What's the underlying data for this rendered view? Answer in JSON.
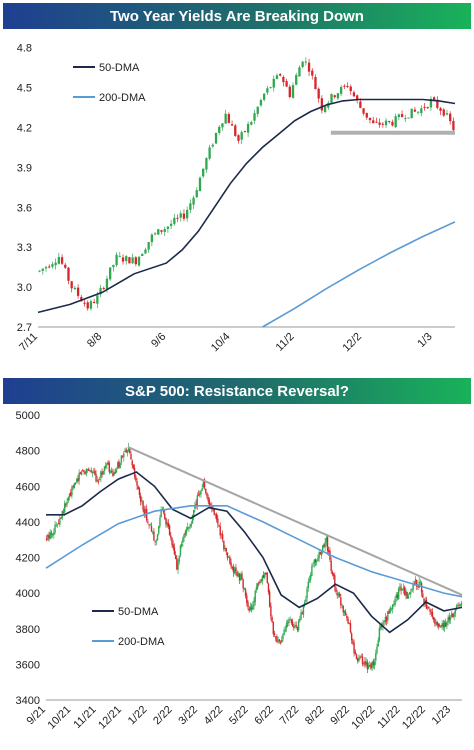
{
  "chart_data": [
    {
      "type": "candlestick",
      "title": "Two Year Yields Are Breaking Down",
      "xlabel": "",
      "ylabel": "",
      "ylim": [
        2.7,
        4.85
      ],
      "y_ticks": [
        "2.7",
        "3.0",
        "3.3",
        "3.6",
        "3.9",
        "4.2",
        "4.5",
        "4.8"
      ],
      "x_ticks": [
        "7/11",
        "8/8",
        "9/6",
        "10/4",
        "11/2",
        "12/2",
        "1/3"
      ],
      "x_tick_pos": [
        0,
        20,
        40,
        60,
        80,
        101,
        123
      ],
      "n_days": 130,
      "grid": false,
      "legend": "top-left",
      "support_level": 4.16,
      "colors": {
        "up": "#2fa84f",
        "down": "#d7262b",
        "ma50": "#1b2a4a",
        "ma200": "#5b9bd5",
        "support": "#b0b0b0"
      },
      "series": [
        {
          "name": "50-DMA",
          "x": [
            0,
            10,
            20,
            30,
            40,
            45,
            50,
            55,
            60,
            65,
            70,
            75,
            80,
            85,
            90,
            95,
            100,
            110,
            120,
            125,
            130
          ],
          "values": [
            2.81,
            2.87,
            2.96,
            3.1,
            3.18,
            3.28,
            3.42,
            3.6,
            3.78,
            3.93,
            4.05,
            4.15,
            4.25,
            4.32,
            4.37,
            4.4,
            4.41,
            4.41,
            4.41,
            4.4,
            4.38
          ]
        },
        {
          "name": "200-DMA",
          "x": [
            70,
            80,
            90,
            100,
            110,
            120,
            130
          ],
          "values": [
            2.7,
            2.84,
            2.99,
            3.13,
            3.26,
            3.38,
            3.49
          ]
        }
      ],
      "path": [
        [
          0,
          3.12
        ],
        [
          6,
          3.23
        ],
        [
          10,
          3.0
        ],
        [
          15,
          2.85
        ],
        [
          18,
          2.92
        ],
        [
          24,
          3.22
        ],
        [
          30,
          3.2
        ],
        [
          35,
          3.38
        ],
        [
          40,
          3.46
        ],
        [
          45,
          3.54
        ],
        [
          48,
          3.68
        ],
        [
          52,
          3.96
        ],
        [
          56,
          4.22
        ],
        [
          58,
          4.3
        ],
        [
          62,
          4.1
        ],
        [
          66,
          4.25
        ],
        [
          70,
          4.45
        ],
        [
          75,
          4.6
        ],
        [
          78,
          4.45
        ],
        [
          82,
          4.72
        ],
        [
          84,
          4.65
        ],
        [
          88,
          4.35
        ],
        [
          92,
          4.45
        ],
        [
          96,
          4.52
        ],
        [
          100,
          4.35
        ],
        [
          104,
          4.22
        ],
        [
          110,
          4.24
        ],
        [
          114,
          4.3
        ],
        [
          118,
          4.32
        ],
        [
          122,
          4.4
        ],
        [
          126,
          4.32
        ],
        [
          130,
          4.15
        ]
      ]
    },
    {
      "type": "candlestick",
      "title": "S&P 500: Resistance Reversal?",
      "xlabel": "",
      "ylabel": "",
      "ylim": [
        3400,
        5000
      ],
      "y_ticks": [
        "3400",
        "3600",
        "3800",
        "4000",
        "4200",
        "4400",
        "4600",
        "4800",
        "5000"
      ],
      "x_ticks": [
        "9/21",
        "10/21",
        "11/21",
        "12/21",
        "1/22",
        "2/22",
        "3/22",
        "4/22",
        "5/22",
        "6/22",
        "7/22",
        "8/22",
        "9/22",
        "10/22",
        "11/22",
        "12/22",
        "1/23"
      ],
      "x_tick_pos": [
        0,
        21,
        42,
        63,
        84,
        105,
        126,
        147,
        168,
        189,
        210,
        231,
        252,
        273,
        294,
        315,
        336
      ],
      "n_days": 345,
      "grid": false,
      "legend": "bottom-left",
      "resistance_line": {
        "x": [
          68,
          345
        ],
        "values": [
          4820,
          3990
        ]
      },
      "colors": {
        "up": "#2fa84f",
        "down": "#d7262b",
        "ma50": "#1b2a4a",
        "ma200": "#5b9bd5",
        "resistance": "#a6a6a6"
      },
      "series": [
        {
          "name": "50-DMA",
          "x": [
            0,
            15,
            30,
            45,
            60,
            75,
            90,
            105,
            120,
            135,
            150,
            165,
            180,
            195,
            210,
            225,
            240,
            255,
            270,
            285,
            300,
            315,
            330,
            345
          ],
          "values": [
            4440,
            4440,
            4490,
            4570,
            4640,
            4680,
            4600,
            4470,
            4420,
            4480,
            4460,
            4340,
            4200,
            3990,
            3920,
            3970,
            4050,
            4000,
            3870,
            3780,
            3850,
            3950,
            3900,
            3920
          ]
        },
        {
          "name": "200-DMA",
          "x": [
            0,
            30,
            60,
            90,
            120,
            150,
            180,
            210,
            240,
            270,
            300,
            330,
            345
          ],
          "values": [
            4140,
            4270,
            4390,
            4460,
            4490,
            4490,
            4400,
            4300,
            4200,
            4120,
            4060,
            4000,
            3980
          ]
        }
      ],
      "path": [
        [
          0,
          4300
        ],
        [
          8,
          4380
        ],
        [
          20,
          4560
        ],
        [
          28,
          4680
        ],
        [
          35,
          4700
        ],
        [
          42,
          4640
        ],
        [
          50,
          4720
        ],
        [
          55,
          4650
        ],
        [
          62,
          4760
        ],
        [
          68,
          4800
        ],
        [
          72,
          4680
        ],
        [
          78,
          4520
        ],
        [
          84,
          4410
        ],
        [
          90,
          4280
        ],
        [
          96,
          4480
        ],
        [
          102,
          4330
        ],
        [
          108,
          4150
        ],
        [
          112,
          4280
        ],
        [
          120,
          4400
        ],
        [
          126,
          4560
        ],
        [
          130,
          4620
        ],
        [
          135,
          4500
        ],
        [
          142,
          4400
        ],
        [
          148,
          4240
        ],
        [
          155,
          4120
        ],
        [
          162,
          4080
        ],
        [
          168,
          3880
        ],
        [
          175,
          4040
        ],
        [
          182,
          4100
        ],
        [
          188,
          3770
        ],
        [
          194,
          3720
        ],
        [
          200,
          3850
        ],
        [
          208,
          3800
        ],
        [
          214,
          3950
        ],
        [
          220,
          4150
        ],
        [
          226,
          4210
        ],
        [
          232,
          4290
        ],
        [
          236,
          4140
        ],
        [
          240,
          4020
        ],
        [
          245,
          3930
        ],
        [
          250,
          3850
        ],
        [
          256,
          3640
        ],
        [
          262,
          3620
        ],
        [
          268,
          3580
        ],
        [
          272,
          3600
        ],
        [
          276,
          3790
        ],
        [
          282,
          3860
        ],
        [
          288,
          3960
        ],
        [
          294,
          4030
        ],
        [
          300,
          3980
        ],
        [
          305,
          4070
        ],
        [
          310,
          4040
        ],
        [
          314,
          3940
        ],
        [
          320,
          3850
        ],
        [
          326,
          3820
        ],
        [
          332,
          3830
        ],
        [
          338,
          3900
        ],
        [
          345,
          3970
        ]
      ]
    }
  ]
}
